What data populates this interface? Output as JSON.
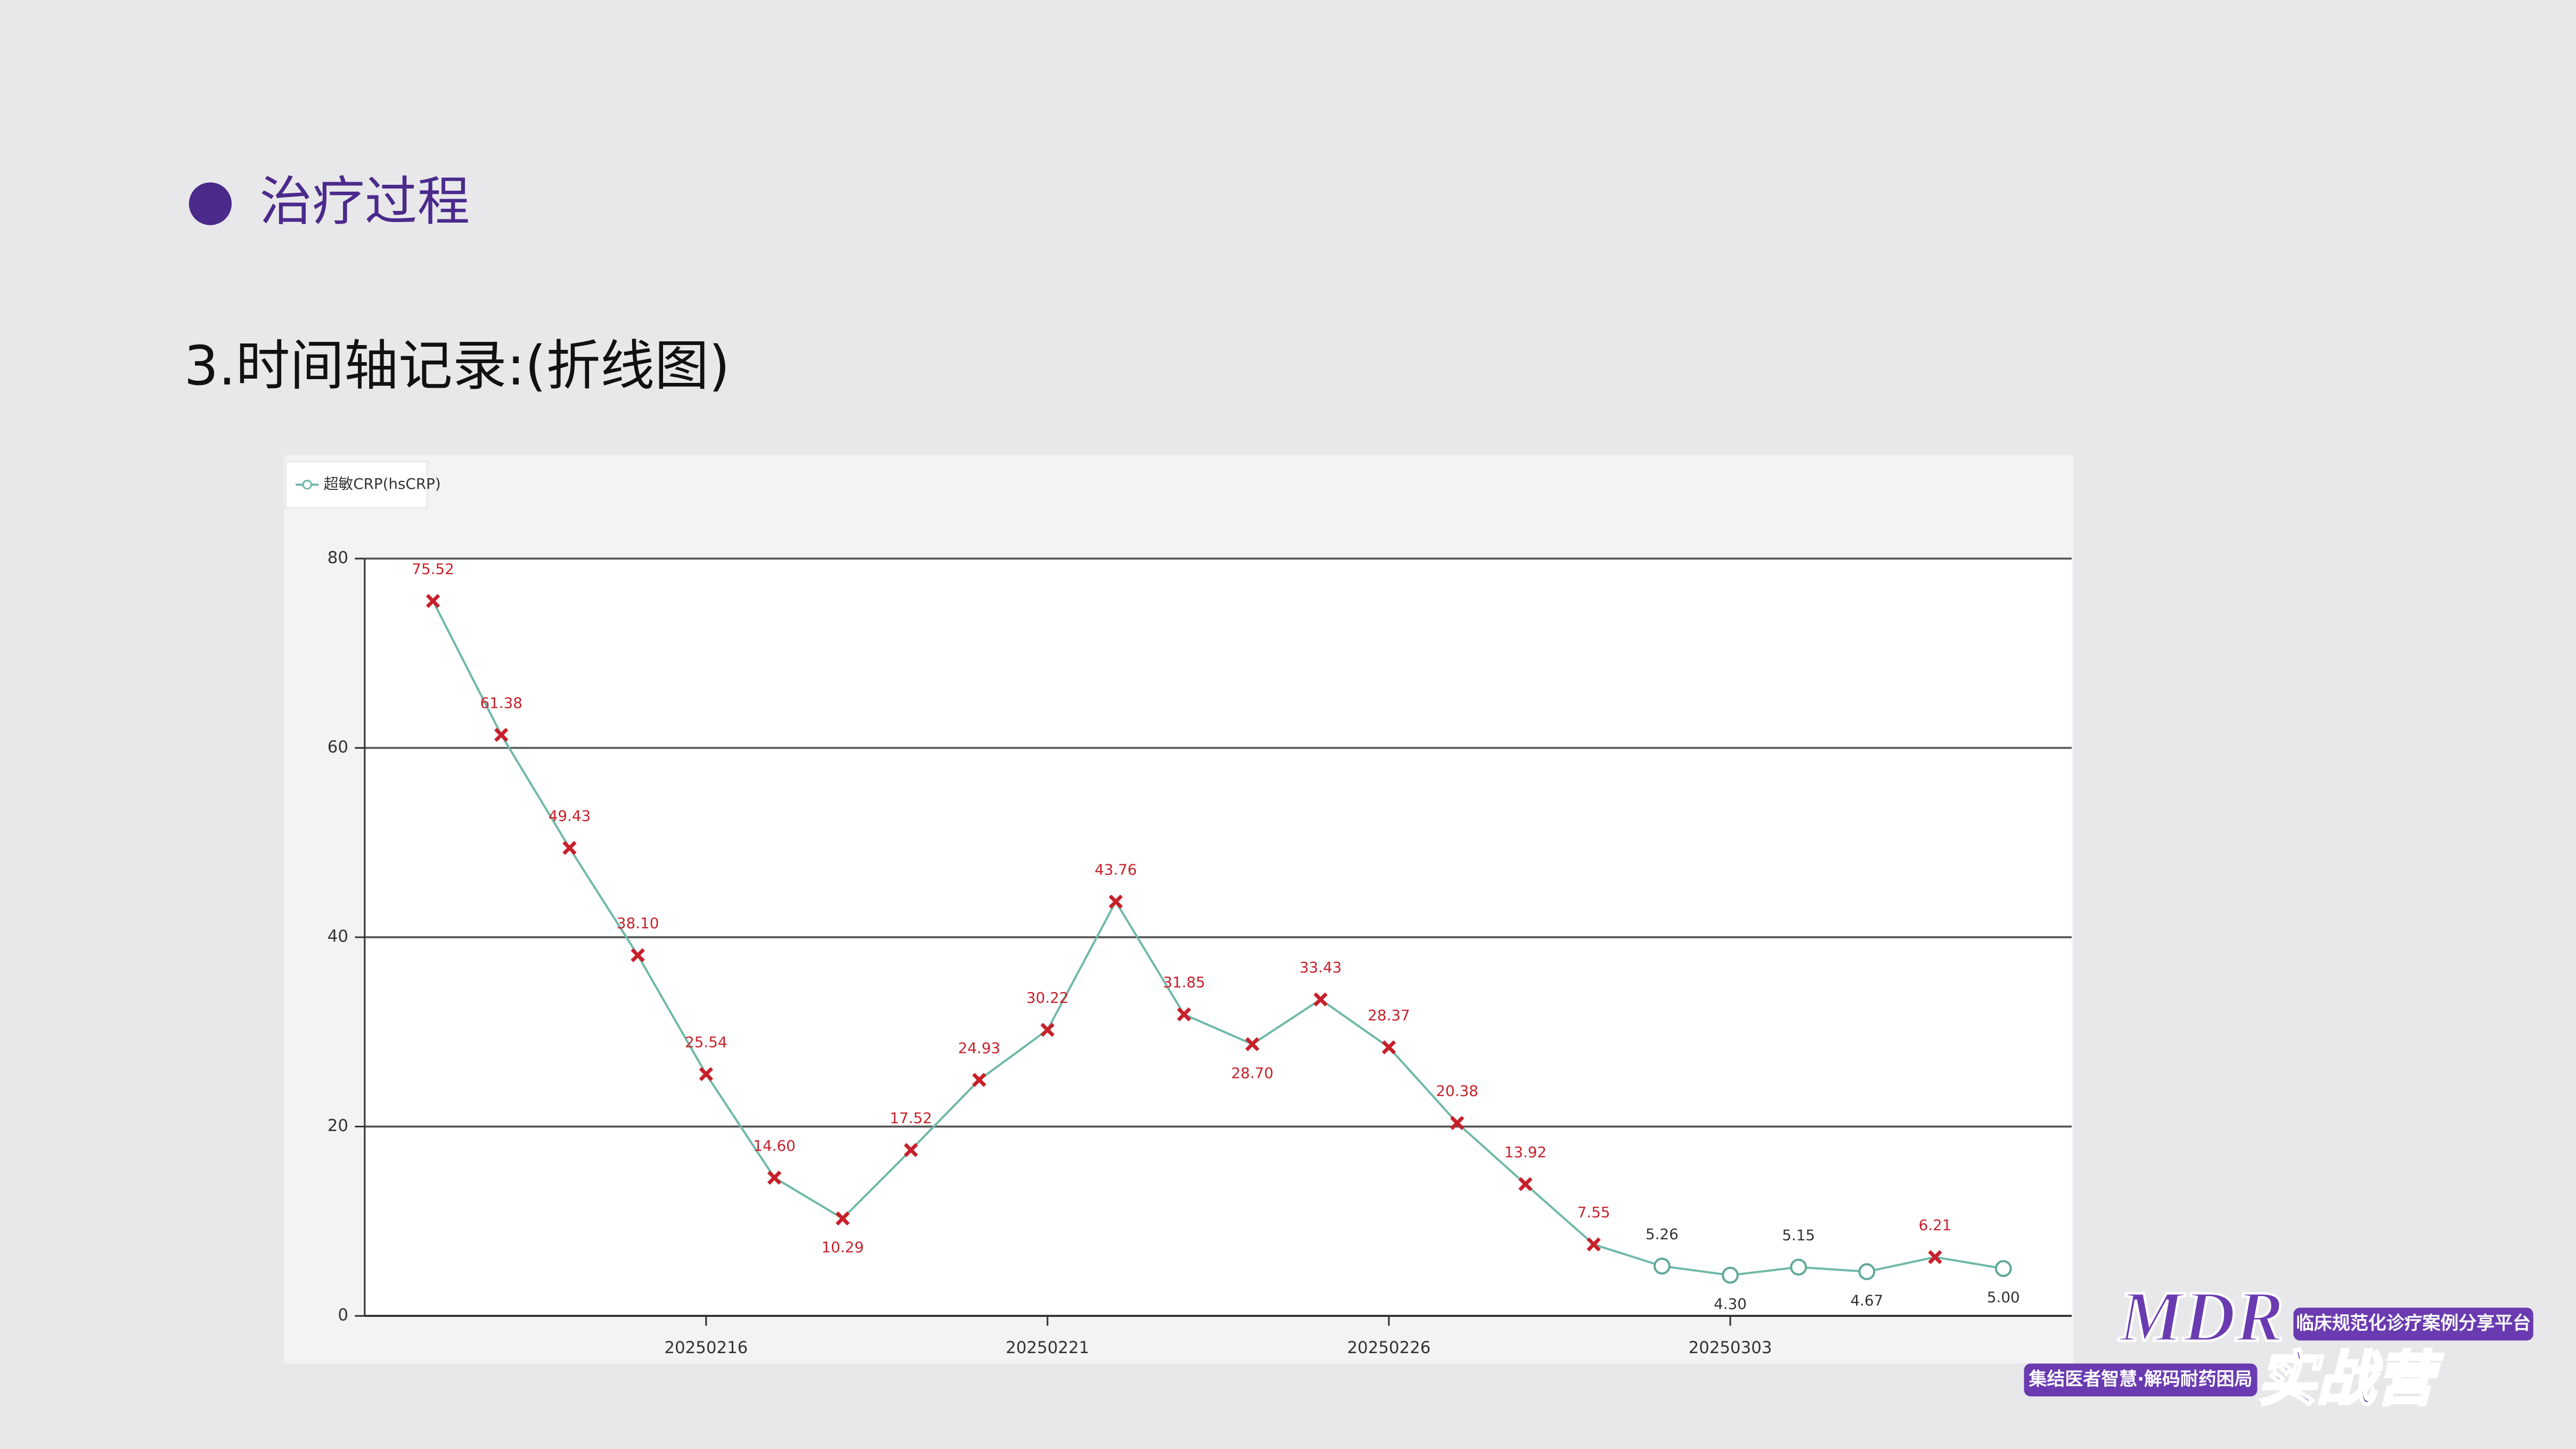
{
  "slide": {
    "heading": "治疗过程",
    "subheading": "3.时间轴记录:(折线图)",
    "logo": {
      "brand": "MDR",
      "tagline": "临床规范化诊疗案例分享平台",
      "slogan": "集结医者智慧·解码耐药困局",
      "name": "实战营"
    }
  },
  "chart_data": {
    "type": "line",
    "categories": [
      null,
      null,
      null,
      null,
      "20250216",
      null,
      null,
      null,
      null,
      "20250221",
      null,
      null,
      null,
      null,
      "20250226",
      null,
      null,
      null,
      null,
      "20250303",
      null,
      null,
      null,
      null
    ],
    "series": [
      {
        "name": "超敏CRP(hsCRP)",
        "color": "#6fb8a8",
        "values": [
          75.52,
          61.38,
          49.43,
          38.1,
          25.54,
          14.6,
          10.29,
          17.52,
          24.93,
          30.22,
          43.76,
          31.85,
          28.7,
          33.43,
          28.37,
          20.38,
          13.92,
          7.55,
          5.26,
          4.3,
          5.15,
          4.67,
          6.21,
          5.0
        ],
        "value_labels": [
          "75.52",
          "61.38",
          "49.43",
          "38.10",
          "25.54",
          "14.60",
          "10.29",
          "17.52",
          "24.93",
          "30.22",
          "43.76",
          "31.85",
          "28.70",
          "33.43",
          "28.37",
          "20.38",
          "13.92",
          "7.55",
          "5.26",
          "4.30",
          "5.15",
          "4.67",
          "6.21",
          "5.00"
        ],
        "markers": [
          "x",
          "x",
          "x",
          "x",
          "x",
          "x",
          "x",
          "x",
          "x",
          "x",
          "x",
          "x",
          "x",
          "x",
          "x",
          "x",
          "x",
          "x",
          "circle",
          "circle",
          "circle",
          "circle",
          "x",
          "circle"
        ],
        "marker_colors": {
          "x": "#c8202a",
          "circle": "#5fa898"
        }
      }
    ],
    "ylim": [
      0,
      80
    ],
    "yticks": [
      0,
      20,
      40,
      60,
      80
    ],
    "grid": true,
    "legend": "top-left"
  }
}
